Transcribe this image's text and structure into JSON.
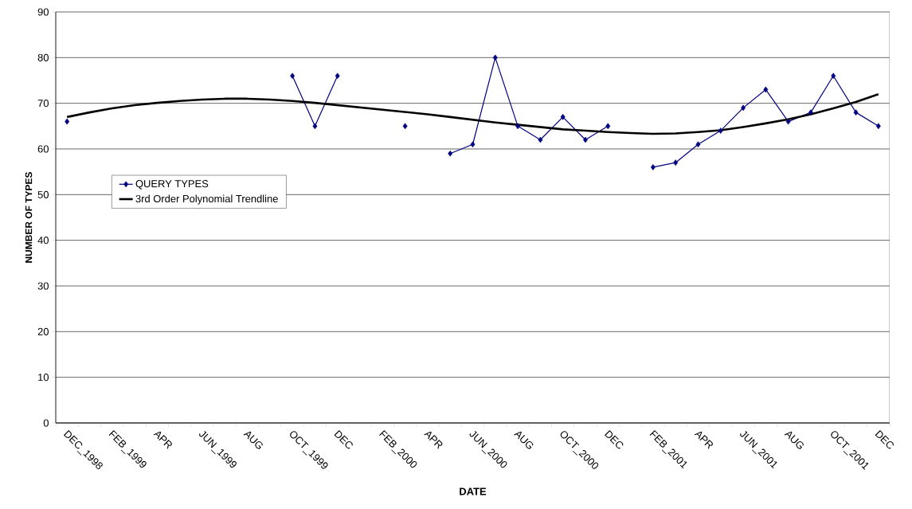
{
  "chart_data": {
    "type": "line",
    "xlabel": "DATE",
    "ylabel": "NUMBER OF TYPES",
    "categories": [
      "DEC_1998",
      null,
      "FEB_1999",
      null,
      "APR",
      null,
      "JUN_1999",
      null,
      "AUG",
      null,
      "OCT_1999",
      null,
      "DEC",
      null,
      "FEB_2000",
      null,
      "APR",
      null,
      "JUN_2000",
      null,
      "AUG",
      null,
      "OCT_2000",
      null,
      "DEC",
      null,
      "FEB_2001",
      null,
      "APR",
      null,
      "JUN_2001",
      null,
      "AUG",
      null,
      "OCT_2001",
      null,
      "DEC"
    ],
    "ylim": [
      0,
      90
    ],
    "yticks": [
      0,
      10,
      20,
      30,
      40,
      50,
      60,
      70,
      80,
      90
    ],
    "grid": "y",
    "legend": "left",
    "series": [
      {
        "name": "QUERY TYPES",
        "color": "#000080",
        "marker": "diamond",
        "values": [
          66,
          null,
          null,
          null,
          null,
          null,
          null,
          null,
          null,
          null,
          76,
          65,
          76,
          null,
          null,
          65,
          null,
          59,
          61,
          80,
          65,
          62,
          67,
          62,
          65,
          null,
          56,
          57,
          61,
          64,
          69,
          73,
          66,
          68,
          76,
          68,
          65
        ]
      },
      {
        "name": "3rd Order Polynomial Trendline",
        "color": "#000000",
        "marker": "none",
        "values": [
          67.0,
          68.0,
          68.9,
          69.6,
          70.1,
          70.5,
          70.8,
          71.0,
          71.0,
          70.8,
          70.5,
          70.1,
          69.6,
          69.1,
          68.6,
          68.1,
          67.6,
          67.0,
          66.4,
          65.8,
          65.3,
          64.8,
          64.3,
          64.0,
          63.7,
          63.5,
          63.3,
          63.4,
          63.7,
          64.1,
          64.8,
          65.6,
          66.5,
          67.6,
          68.9,
          70.3,
          72.0
        ]
      }
    ]
  }
}
